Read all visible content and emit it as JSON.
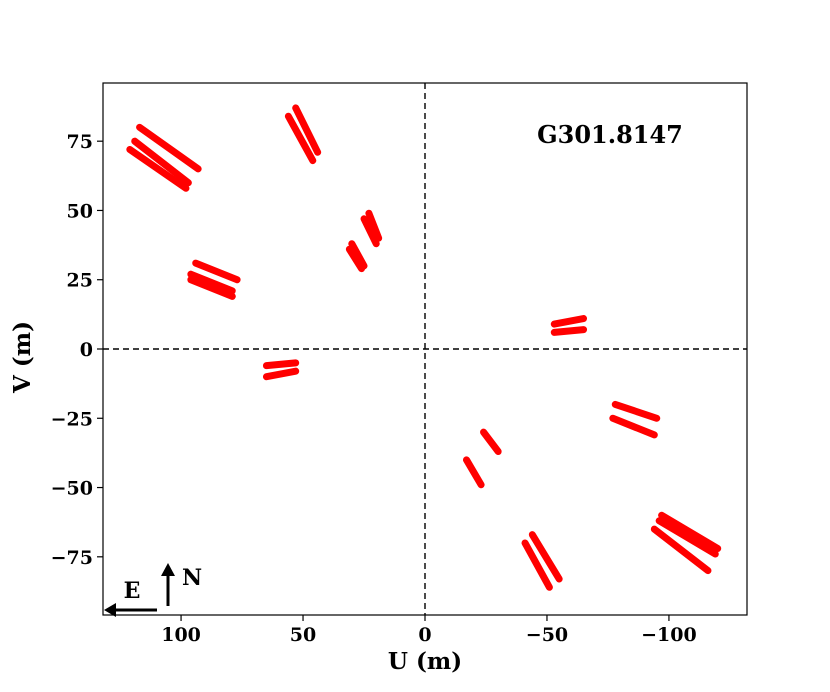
{
  "chart_data": {
    "type": "scatter",
    "title": "",
    "annotation": "G301.8147",
    "xlabel": "U (m)",
    "ylabel": "V (m)",
    "xlim": [
      132,
      -132
    ],
    "ylim": [
      -96,
      96
    ],
    "x_ticks": [
      100,
      50,
      0,
      -50,
      -100
    ],
    "x_tick_labels": [
      "100",
      "50",
      "0",
      "−50",
      "−100"
    ],
    "y_ticks": [
      75,
      50,
      25,
      0,
      -25,
      -50,
      -75
    ],
    "y_tick_labels": [
      "75",
      "50",
      "25",
      "0",
      "−25",
      "−50",
      "−75"
    ],
    "zero_lines": true,
    "grid": false,
    "legend": "none",
    "series_color": "#ff0000",
    "compass": {
      "east": "E",
      "north": "N"
    },
    "tracks": [
      {
        "x": [
          117,
          93
        ],
        "y": [
          80,
          65
        ]
      },
      {
        "x": [
          119,
          97
        ],
        "y": [
          75,
          60
        ]
      },
      {
        "x": [
          121,
          98
        ],
        "y": [
          72,
          58
        ]
      },
      {
        "x": [
          53,
          44
        ],
        "y": [
          87,
          71
        ]
      },
      {
        "x": [
          56,
          46
        ],
        "y": [
          84,
          68
        ]
      },
      {
        "x": [
          23,
          19
        ],
        "y": [
          49,
          40
        ]
      },
      {
        "x": [
          25,
          20
        ],
        "y": [
          47,
          38
        ]
      },
      {
        "x": [
          30,
          25
        ],
        "y": [
          38,
          30
        ]
      },
      {
        "x": [
          31,
          26
        ],
        "y": [
          36,
          29
        ]
      },
      {
        "x": [
          94,
          77
        ],
        "y": [
          31,
          25
        ]
      },
      {
        "x": [
          96,
          79
        ],
        "y": [
          27,
          21
        ]
      },
      {
        "x": [
          96,
          79
        ],
        "y": [
          25,
          19
        ]
      },
      {
        "x": [
          65,
          53
        ],
        "y": [
          -6,
          -5
        ]
      },
      {
        "x": [
          65,
          53
        ],
        "y": [
          -10,
          -8
        ]
      },
      {
        "x": [
          -53,
          -65
        ],
        "y": [
          9,
          11
        ]
      },
      {
        "x": [
          -53,
          -65
        ],
        "y": [
          6,
          7
        ]
      },
      {
        "x": [
          -78,
          -95
        ],
        "y": [
          -20,
          -25
        ]
      },
      {
        "x": [
          -77,
          -94
        ],
        "y": [
          -25,
          -31
        ]
      },
      {
        "x": [
          -24,
          -30
        ],
        "y": [
          -30,
          -37
        ]
      },
      {
        "x": [
          -17,
          -23
        ],
        "y": [
          -40,
          -49
        ]
      },
      {
        "x": [
          -44,
          -55
        ],
        "y": [
          -67,
          -83
        ]
      },
      {
        "x": [
          -41,
          -51
        ],
        "y": [
          -70,
          -86
        ]
      },
      {
        "x": [
          -97,
          -120
        ],
        "y": [
          -60,
          -72
        ]
      },
      {
        "x": [
          -96,
          -119
        ],
        "y": [
          -62,
          -74
        ]
      },
      {
        "x": [
          -94,
          -116
        ],
        "y": [
          -65,
          -80
        ]
      }
    ]
  }
}
